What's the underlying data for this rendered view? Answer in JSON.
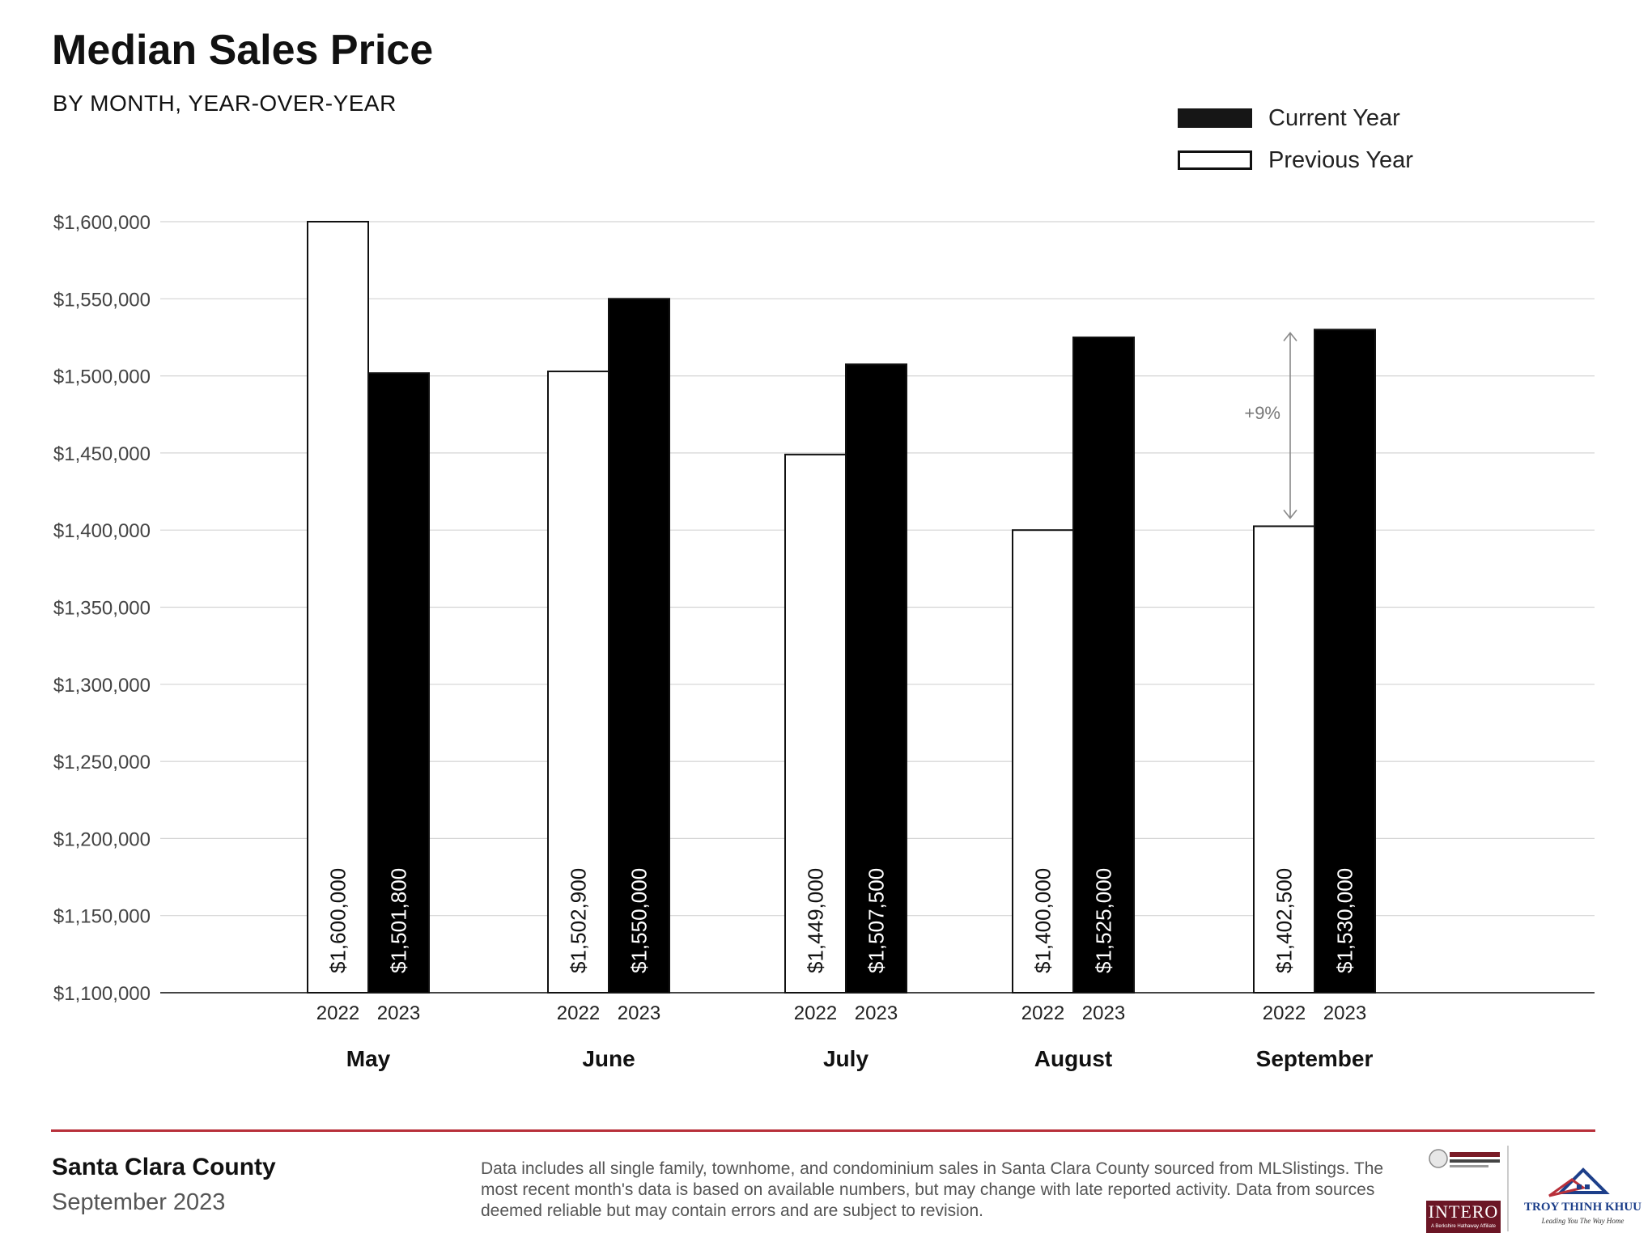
{
  "header": {
    "title": "Median Sales Price",
    "subtitle": "BY MONTH, YEAR-OVER-YEAR"
  },
  "legend": {
    "current": "Current Year",
    "previous": "Previous Year"
  },
  "chart_data": {
    "type": "bar",
    "categories": [
      "May",
      "June",
      "July",
      "August",
      "September"
    ],
    "series": [
      {
        "name": "Previous Year",
        "year_label": "2022",
        "values": [
          1600000,
          1502900,
          1449000,
          1400000,
          1402500
        ],
        "value_labels": [
          "$1,600,000",
          "$1,502,900",
          "$1,449,000",
          "$1,400,000",
          "$1,402,500"
        ],
        "color": "#ffffff"
      },
      {
        "name": "Current Year",
        "year_label": "2023",
        "values": [
          1501800,
          1550000,
          1507500,
          1525000,
          1530000
        ],
        "value_labels": [
          "$1,501,800",
          "$1,550,000",
          "$1,507,500",
          "$1,525,000",
          "$1,530,000"
        ],
        "color": "#000000"
      }
    ],
    "ylim": [
      1100000,
      1600000
    ],
    "yticks": [
      1100000,
      1150000,
      1200000,
      1250000,
      1300000,
      1350000,
      1400000,
      1450000,
      1500000,
      1550000,
      1600000
    ],
    "ytick_labels": [
      "$1,100,000",
      "$1,150,000",
      "$1,200,000",
      "$1,250,000",
      "$1,300,000",
      "$1,350,000",
      "$1,400,000",
      "$1,450,000",
      "$1,500,000",
      "$1,550,000",
      "$1,600,000"
    ],
    "grid": true,
    "legend_position": "top-right",
    "annotation": {
      "category": "September",
      "text": "+9%"
    }
  },
  "footer": {
    "county": "Santa Clara County",
    "period": "September 2023",
    "disclaimer": "Data includes all single family, townhome, and condominium sales in Santa Clara County sourced from MLSlistings. The most recent month's data is based on available numbers, but may change with late reported activity. Data from sources deemed reliable but may contain errors and are subject to revision."
  },
  "logos": {
    "intero": "INTERO",
    "intero_tagline": "A Berkshire Hathaway Affiliate",
    "troy": "TROY THINH KHUU",
    "troy_tagline": "Leading You The Way Home"
  }
}
